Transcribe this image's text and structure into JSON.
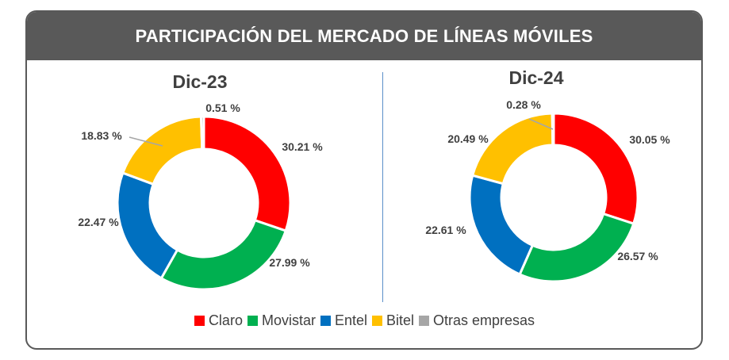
{
  "title": "PARTICIPACIÓN DEL MERCADO DE LÍNEAS MÓVILES",
  "chart_data": [
    {
      "type": "pie",
      "subtype": "donut",
      "title": "Dic-23",
      "categories": [
        "Claro",
        "Movistar",
        "Entel",
        "Bitel",
        "Otras empresas"
      ],
      "values": [
        30.21,
        27.99,
        22.47,
        18.83,
        0.51
      ],
      "labels": [
        "30.21 %",
        "27.99 %",
        "22.47 %",
        "18.83 %",
        "0.51 %"
      ],
      "colors": [
        "#ff0000",
        "#00b050",
        "#0070c0",
        "#ffc000",
        "#a6a6a6"
      ]
    },
    {
      "type": "pie",
      "subtype": "donut",
      "title": "Dic-24",
      "categories": [
        "Claro",
        "Movistar",
        "Entel",
        "Bitel",
        "Otras empresas"
      ],
      "values": [
        30.05,
        26.57,
        22.61,
        20.49,
        0.28
      ],
      "labels": [
        "30.05 %",
        "26.57 %",
        "22.61 %",
        "20.49 %",
        "0.28 %"
      ],
      "colors": [
        "#ff0000",
        "#00b050",
        "#0070c0",
        "#ffc000",
        "#a6a6a6"
      ]
    }
  ],
  "legend": [
    {
      "label": "Claro",
      "color": "#ff0000"
    },
    {
      "label": "Movistar",
      "color": "#00b050"
    },
    {
      "label": "Entel",
      "color": "#0070c0"
    },
    {
      "label": "Bitel",
      "color": "#ffc000"
    },
    {
      "label": "Otras empresas",
      "color": "#a6a6a6"
    }
  ]
}
